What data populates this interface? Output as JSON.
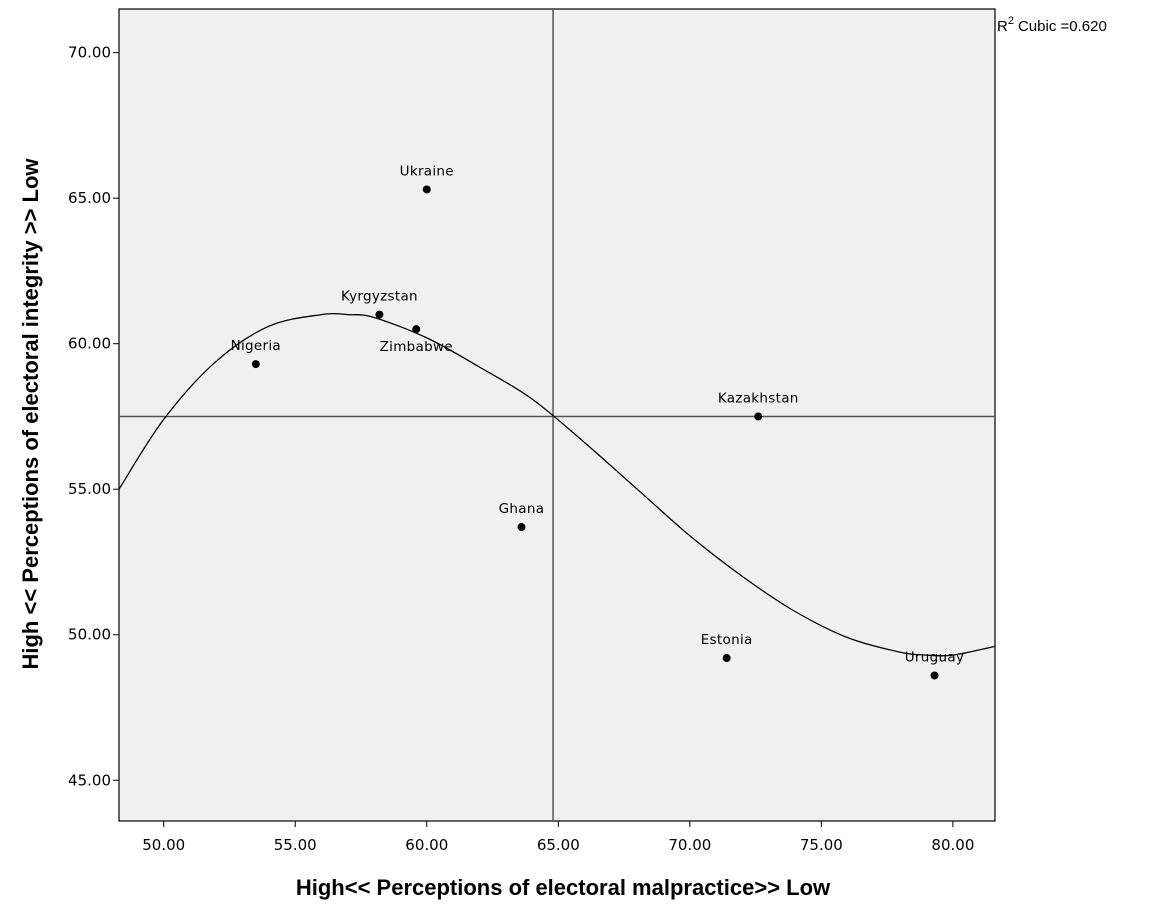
{
  "chart_data": {
    "type": "scatter",
    "title": "",
    "xlabel": "High<< Perceptions of electoral malpractice>> Low",
    "ylabel": "High << Perceptions of electoral integrity >> Low",
    "xlim": [
      48.3,
      81.6
    ],
    "ylim": [
      43.6,
      71.5
    ],
    "xticks": [
      50,
      55,
      60,
      65,
      70,
      75,
      80
    ],
    "yticks": [
      45,
      50,
      55,
      60,
      65,
      70
    ],
    "xtick_labels": [
      "50.00",
      "55.00",
      "60.00",
      "65.00",
      "70.00",
      "75.00",
      "80.00"
    ],
    "ytick_labels": [
      "45.00",
      "50.00",
      "55.00",
      "60.00",
      "65.00",
      "70.00"
    ],
    "reference_lines": {
      "x": 64.8,
      "y": 57.5
    },
    "points": [
      {
        "label": "Ukraine",
        "x": 60.0,
        "y": 65.3,
        "label_pos": "above"
      },
      {
        "label": "Kyrgyzstan",
        "x": 58.2,
        "y": 61.0,
        "label_pos": "above"
      },
      {
        "label": "Zimbabwe",
        "x": 59.6,
        "y": 60.5,
        "label_pos": "below"
      },
      {
        "label": "Nigeria",
        "x": 53.5,
        "y": 59.3,
        "label_pos": "above"
      },
      {
        "label": "Kazakhstan",
        "x": 72.6,
        "y": 57.5,
        "label_pos": "above"
      },
      {
        "label": "Ghana",
        "x": 63.6,
        "y": 53.7,
        "label_pos": "above"
      },
      {
        "label": "Estonia",
        "x": 71.4,
        "y": 49.2,
        "label_pos": "above"
      },
      {
        "label": "Uruguay",
        "x": 79.3,
        "y": 48.6,
        "label_pos": "above"
      }
    ],
    "fit_line": {
      "type": "cubic",
      "r2_label": "Cubic =0.620",
      "r2_prefix": "R",
      "r2_superscript": "2",
      "points": [
        [
          48.3,
          55.0
        ],
        [
          50.0,
          57.4
        ],
        [
          52.0,
          59.4
        ],
        [
          54.0,
          60.6
        ],
        [
          56.0,
          61.0
        ],
        [
          57.0,
          61.0
        ],
        [
          58.0,
          60.9
        ],
        [
          60.0,
          60.2
        ],
        [
          62.0,
          59.2
        ],
        [
          64.0,
          58.1
        ],
        [
          66.0,
          56.6
        ],
        [
          68.0,
          55.0
        ],
        [
          70.0,
          53.4
        ],
        [
          72.0,
          52.0
        ],
        [
          74.0,
          50.8
        ],
        [
          76.0,
          49.9
        ],
        [
          78.0,
          49.4
        ],
        [
          79.0,
          49.3
        ],
        [
          80.0,
          49.3
        ],
        [
          81.6,
          49.6
        ]
      ]
    },
    "grid": false,
    "plot_background": "#f0f0f0",
    "marker_color": "#000000",
    "line_color": "#000000"
  }
}
